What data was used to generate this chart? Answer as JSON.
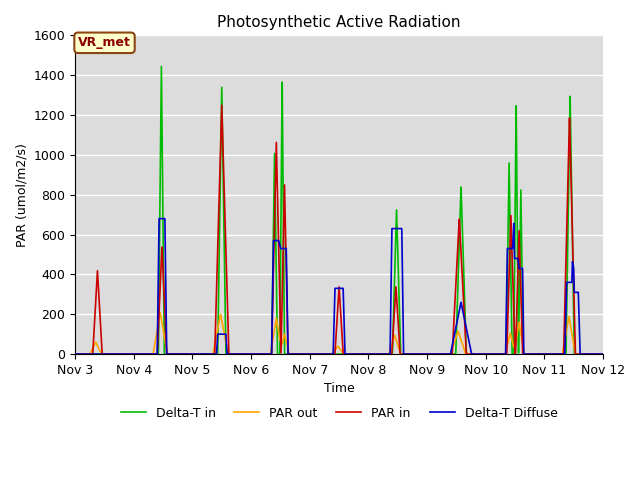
{
  "title": "Photosynthetic Active Radiation",
  "ylabel": "PAR (umol/m2/s)",
  "xlabel": "Time",
  "annotation": "VR_met",
  "legend": [
    "PAR in",
    "PAR out",
    "Delta-T in",
    "Delta-T Diffuse"
  ],
  "colors": {
    "PAR_in": "#cc0000",
    "PAR_out": "#ffa500",
    "DeltaT_in": "#00bb00",
    "DeltaT_Diffuse": "#0000cc"
  },
  "ylim": [
    0,
    1600
  ],
  "xlim_days": [
    3.0,
    12.0
  ],
  "xticks": [
    3,
    4,
    5,
    6,
    7,
    8,
    9,
    10,
    11,
    12
  ],
  "xticklabels": [
    "Nov 3",
    "Nov 4",
    "Nov 5",
    "Nov 6",
    "Nov 7",
    "Nov 8",
    "Nov 9",
    "Nov 10",
    "Nov 11",
    "Nov 12"
  ],
  "bg_color": "#dcdcdc",
  "linewidth": 1.2,
  "title_fontsize": 11,
  "label_fontsize": 9,
  "tick_fontsize": 9
}
